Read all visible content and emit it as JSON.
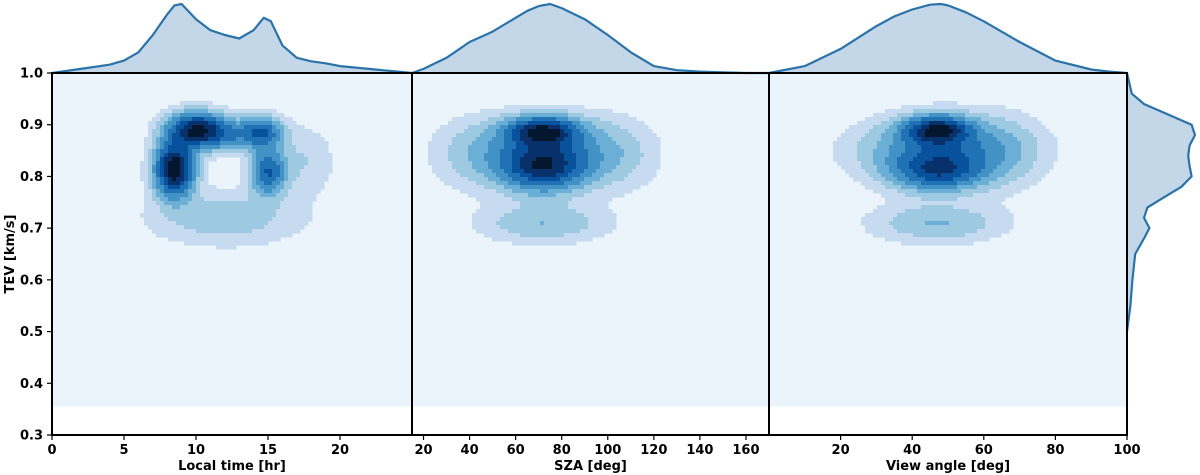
{
  "chart_data": {
    "type": "heatmap",
    "subtype": "joint-kde",
    "shared_y": {
      "label": "TEV [km/s]",
      "ylim": [
        0.3,
        1.0
      ],
      "ticks": [
        0.3,
        0.4,
        0.5,
        0.6,
        0.7,
        0.8,
        0.9,
        1.0
      ],
      "tick_labels": [
        "0.3",
        "0.4",
        "0.5",
        "0.6",
        "0.7",
        "0.8",
        "0.9",
        "1.0"
      ],
      "data_fill_min": 0.355
    },
    "colors": {
      "cmap": [
        "#ebf3fb",
        "#c6dbef",
        "#9ecae1",
        "#6baed6",
        "#4292c6",
        "#2171b5",
        "#08519c",
        "#08306b",
        "#04172f"
      ],
      "marginal_line": "#2b72a8",
      "marginal_fill": "#c3d7e9",
      "frame": "#000000"
    },
    "panels": [
      {
        "xlabel": "Local time [hr]",
        "xlim": [
          0,
          25
        ],
        "ticks": [
          0,
          5,
          10,
          15,
          20
        ],
        "tick_labels": [
          "0",
          "5",
          "10",
          "15",
          "20"
        ],
        "modes": [
          {
            "x": 8.5,
            "y": 0.815,
            "sx": 0.9,
            "sy": 0.035,
            "w": 1.0
          },
          {
            "x": 10.0,
            "y": 0.89,
            "sx": 1.3,
            "sy": 0.022,
            "w": 0.85
          },
          {
            "x": 14.5,
            "y": 0.885,
            "sx": 1.0,
            "sy": 0.02,
            "w": 0.55
          },
          {
            "x": 15.0,
            "y": 0.81,
            "sx": 0.8,
            "sy": 0.03,
            "w": 0.55
          },
          {
            "x": 12.0,
            "y": 0.88,
            "sx": 1.2,
            "sy": 0.02,
            "w": 0.3
          },
          {
            "x": 12.0,
            "y": 0.72,
            "sx": 3.5,
            "sy": 0.035,
            "w": 0.15
          },
          {
            "x": 17.5,
            "y": 0.83,
            "sx": 1.4,
            "sy": 0.045,
            "w": 0.1
          }
        ],
        "marginal_x": [
          0,
          2,
          4,
          5,
          6,
          7,
          8,
          8.5,
          9,
          10,
          11,
          12,
          13,
          14,
          14.7,
          15.2,
          16,
          17,
          18,
          19,
          20,
          22,
          24,
          25
        ],
        "marginal_density": [
          0.0,
          0.06,
          0.12,
          0.18,
          0.3,
          0.55,
          0.85,
          0.98,
          1.0,
          0.78,
          0.62,
          0.55,
          0.5,
          0.62,
          0.8,
          0.75,
          0.4,
          0.22,
          0.17,
          0.14,
          0.1,
          0.06,
          0.02,
          0.0
        ]
      },
      {
        "xlabel": "SZA [deg]",
        "xlim": [
          15,
          170
        ],
        "ticks": [
          20,
          40,
          60,
          80,
          100,
          120,
          140,
          160
        ],
        "tick_labels": [
          "20",
          "40",
          "60",
          "80",
          "100",
          "120",
          "140",
          "160"
        ],
        "modes": [
          {
            "x": 72,
            "y": 0.888,
            "sx": 10,
            "sy": 0.018,
            "w": 1.0
          },
          {
            "x": 72,
            "y": 0.815,
            "sx": 12,
            "sy": 0.03,
            "w": 0.85
          },
          {
            "x": 72,
            "y": 0.85,
            "sx": 20,
            "sy": 0.04,
            "w": 0.55
          },
          {
            "x": 72,
            "y": 0.71,
            "sx": 18,
            "sy": 0.025,
            "w": 0.25
          },
          {
            "x": 40,
            "y": 0.84,
            "sx": 12,
            "sy": 0.05,
            "w": 0.1
          },
          {
            "x": 105,
            "y": 0.84,
            "sx": 12,
            "sy": 0.05,
            "w": 0.12
          }
        ],
        "marginal_x": [
          15,
          20,
          30,
          40,
          50,
          60,
          65,
          70,
          75,
          80,
          90,
          100,
          110,
          120,
          130,
          140,
          150,
          160,
          170
        ],
        "marginal_density": [
          0.0,
          0.06,
          0.22,
          0.45,
          0.6,
          0.8,
          0.9,
          0.97,
          1.0,
          0.94,
          0.78,
          0.55,
          0.3,
          0.1,
          0.04,
          0.02,
          0.01,
          0.0,
          0.0
        ]
      },
      {
        "xlabel": "View angle [deg]",
        "xlim": [
          0,
          100
        ],
        "ticks": [
          20,
          40,
          60,
          80,
          100
        ],
        "tick_labels": [
          "20",
          "40",
          "60",
          "80",
          "100"
        ],
        "modes": [
          {
            "x": 47,
            "y": 0.89,
            "sx": 6,
            "sy": 0.018,
            "w": 1.0
          },
          {
            "x": 47,
            "y": 0.81,
            "sx": 8,
            "sy": 0.025,
            "w": 0.7
          },
          {
            "x": 48,
            "y": 0.85,
            "sx": 14,
            "sy": 0.04,
            "w": 0.55
          },
          {
            "x": 47,
            "y": 0.71,
            "sx": 12,
            "sy": 0.025,
            "w": 0.25
          },
          {
            "x": 65,
            "y": 0.85,
            "sx": 8,
            "sy": 0.05,
            "w": 0.12
          }
        ],
        "marginal_x": [
          0,
          10,
          20,
          30,
          35,
          40,
          45,
          48,
          50,
          55,
          60,
          70,
          80,
          90,
          95,
          100
        ],
        "marginal_density": [
          0.0,
          0.1,
          0.35,
          0.68,
          0.82,
          0.92,
          0.99,
          1.0,
          0.98,
          0.88,
          0.75,
          0.45,
          0.18,
          0.05,
          0.02,
          0.0
        ]
      }
    ],
    "marginal_y": {
      "y": [
        0.5,
        0.55,
        0.6,
        0.65,
        0.68,
        0.7,
        0.72,
        0.74,
        0.76,
        0.78,
        0.8,
        0.82,
        0.84,
        0.86,
        0.88,
        0.9,
        0.92,
        0.94,
        0.96,
        1.0
      ],
      "density": [
        0.0,
        0.05,
        0.08,
        0.12,
        0.25,
        0.33,
        0.25,
        0.3,
        0.55,
        0.8,
        0.95,
        0.92,
        0.9,
        0.92,
        1.0,
        0.95,
        0.6,
        0.25,
        0.07,
        0.0
      ]
    }
  }
}
